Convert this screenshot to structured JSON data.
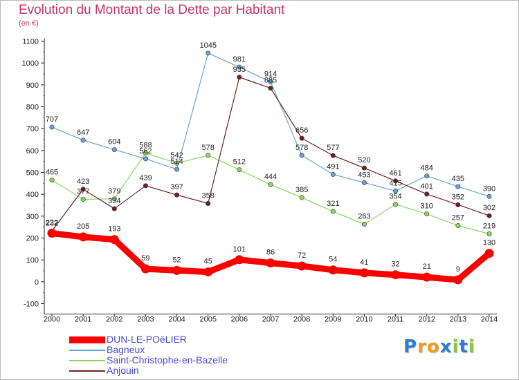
{
  "title": "Evolution du Montant de la Dette par Habitant",
  "subtitle": "(en €)",
  "colors": {
    "title": "#c8336b",
    "legend_text": "#4a4ad6",
    "axis": "#222222",
    "grid_dash": "#d23c6e"
  },
  "chart_data": {
    "type": "line",
    "title": "Evolution du Montant de la Dette par Habitant",
    "ylabel": "(en €)",
    "ylim": [
      -100,
      1100
    ],
    "yticks": [
      -100,
      0,
      100,
      200,
      300,
      400,
      500,
      600,
      700,
      800,
      900,
      1000,
      1100
    ],
    "x": [
      "2000",
      "2001",
      "2002",
      "2003",
      "2004",
      "2005",
      "2006",
      "2007",
      "2008",
      "2009",
      "2010",
      "2011",
      "2012",
      "2013",
      "2014"
    ],
    "legend_position": "bottom-left",
    "series": [
      {
        "name": "DUN-LE-POëLIER",
        "color": "#ff0000",
        "values": [
          222,
          205,
          193,
          59,
          52,
          45,
          101,
          86,
          72,
          54,
          41,
          32,
          21,
          9,
          130
        ]
      },
      {
        "name": "Bagneux",
        "color": "#6ba3d6",
        "values": [
          707,
          647,
          604,
          562,
          514,
          1045,
          981,
          914,
          578,
          491,
          453,
          415,
          484,
          435,
          390
        ]
      },
      {
        "name": "Saint-Christophe-en-Bazelle",
        "color": "#8ed65f",
        "values": [
          465,
          377,
          379,
          588,
          542,
          578,
          512,
          444,
          385,
          321,
          263,
          354,
          310,
          257,
          219
        ]
      },
      {
        "name": "Anjouin",
        "color": "#6e1f24",
        "values": [
          232,
          423,
          334,
          439,
          397,
          358,
          935,
          885,
          656,
          577,
          520,
          461,
          401,
          352,
          302
        ]
      }
    ],
    "data_labels": [
      [
        "222",
        "205",
        "193",
        "59",
        "52",
        "45",
        "101",
        "86",
        "72",
        "54",
        "41",
        "32",
        "21",
        "9",
        "130"
      ],
      [
        "707",
        "647",
        "604",
        "562",
        "514",
        "1045",
        "981",
        "914",
        "578",
        "491",
        "453",
        "415",
        "484",
        "435",
        "390"
      ],
      [
        "465",
        "377",
        "379",
        "588",
        "542",
        "578",
        "512",
        "444",
        "385",
        "321",
        "263",
        "354",
        "310",
        "257",
        "219"
      ],
      [
        "232",
        "423",
        "334",
        "439",
        "397",
        "358",
        "935",
        "885",
        "656",
        "577",
        "520",
        "461",
        "401",
        "352",
        "302"
      ]
    ]
  },
  "legend": [
    {
      "label": "DUN-LE-POëLIER",
      "color": "#ff0000"
    },
    {
      "label": "Bagneux",
      "color": "#6ba3d6"
    },
    {
      "label": "Saint-Christophe-en-Bazelle",
      "color": "#8ed65f"
    },
    {
      "label": "Anjouin",
      "color": "#6e1f24"
    }
  ],
  "logo": {
    "letters": [
      "P",
      "r",
      "o",
      "x",
      "i",
      "t",
      "i"
    ],
    "colors": [
      "#2a7fd4",
      "#f39a1e",
      "#f39a1e",
      "#2a7fd4",
      "#8cc63f",
      "#2a7fd4",
      "#8cc63f"
    ]
  }
}
